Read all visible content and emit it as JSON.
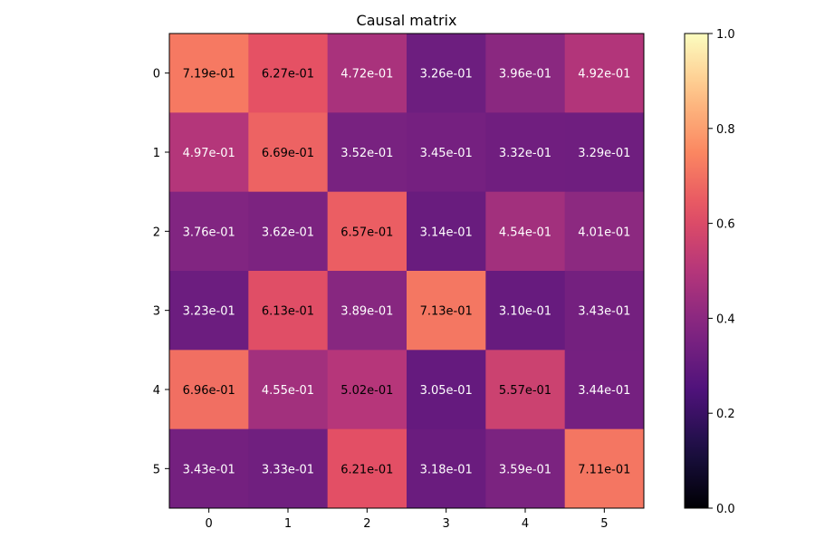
{
  "chart_data": {
    "type": "heatmap",
    "title": "Causal matrix",
    "xlabel": "",
    "ylabel": "",
    "x_categories": [
      "0",
      "1",
      "2",
      "3",
      "4",
      "5"
    ],
    "y_categories": [
      "0",
      "1",
      "2",
      "3",
      "4",
      "5"
    ],
    "values": [
      [
        0.719,
        0.627,
        0.472,
        0.326,
        0.396,
        0.492
      ],
      [
        0.497,
        0.669,
        0.352,
        0.345,
        0.332,
        0.329
      ],
      [
        0.376,
        0.362,
        0.657,
        0.314,
        0.454,
        0.401
      ],
      [
        0.323,
        0.613,
        0.389,
        0.713,
        0.31,
        0.343
      ],
      [
        0.696,
        0.455,
        0.502,
        0.305,
        0.557,
        0.344
      ],
      [
        0.343,
        0.333,
        0.621,
        0.318,
        0.359,
        0.711
      ]
    ],
    "cell_labels": [
      [
        "7.19e-01",
        "6.27e-01",
        "4.72e-01",
        "3.26e-01",
        "3.96e-01",
        "4.92e-01"
      ],
      [
        "4.97e-01",
        "6.69e-01",
        "3.52e-01",
        "3.45e-01",
        "3.32e-01",
        "3.29e-01"
      ],
      [
        "3.76e-01",
        "3.62e-01",
        "6.57e-01",
        "3.14e-01",
        "4.54e-01",
        "4.01e-01"
      ],
      [
        "3.23e-01",
        "6.13e-01",
        "3.89e-01",
        "7.13e-01",
        "3.10e-01",
        "3.43e-01"
      ],
      [
        "6.96e-01",
        "4.55e-01",
        "5.02e-01",
        "3.05e-01",
        "5.57e-01",
        "3.44e-01"
      ],
      [
        "3.43e-01",
        "3.33e-01",
        "6.21e-01",
        "3.18e-01",
        "3.59e-01",
        "7.11e-01"
      ]
    ],
    "colormap": "magma",
    "vmin": 0,
    "vmax": 1,
    "colorbar_ticks": [
      "0.0",
      "0.2",
      "0.4",
      "0.6",
      "0.8",
      "1.0"
    ],
    "colorbar_tick_values": [
      0,
      0.2,
      0.4,
      0.6,
      0.8,
      1.0
    ],
    "grid": false,
    "legend": "colorbar-right"
  },
  "colors": {
    "text_dark": "#000000",
    "text_light": "#ffffff",
    "axis": "#000000"
  }
}
